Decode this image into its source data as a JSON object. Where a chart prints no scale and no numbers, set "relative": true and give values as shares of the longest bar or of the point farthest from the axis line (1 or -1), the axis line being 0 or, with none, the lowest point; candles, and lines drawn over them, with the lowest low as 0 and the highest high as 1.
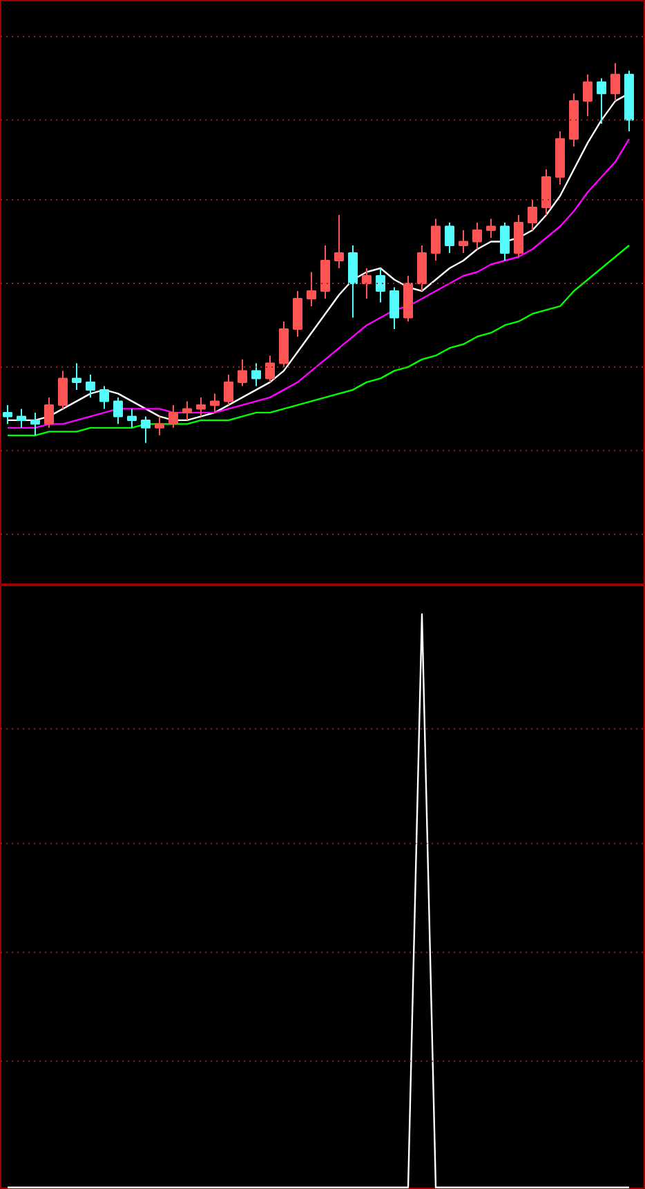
{
  "chart_data": [
    {
      "type": "candlestick",
      "relative": true,
      "ref_lines": [
        {
          "axis": "y",
          "value": 1.07,
          "color": "#a02020",
          "line_style": "dotted"
        },
        {
          "axis": "y",
          "value": 0.85,
          "color": "#a02020",
          "line_style": "dotted"
        },
        {
          "axis": "y",
          "value": 0.64,
          "color": "#a02020",
          "line_style": "dotted"
        },
        {
          "axis": "y",
          "value": 0.42,
          "color": "#a02020",
          "line_style": "dotted"
        },
        {
          "axis": "y",
          "value": 0.2,
          "color": "#a02020",
          "line_style": "dotted"
        },
        {
          "axis": "y",
          "value": -0.02,
          "color": "#a02020",
          "line_style": "dotted"
        },
        {
          "axis": "y",
          "value": -0.24,
          "color": "#a02020",
          "line_style": "dotted"
        }
      ],
      "categories": [
        null,
        null,
        null,
        null,
        null,
        null,
        null,
        null,
        null,
        null,
        null,
        null,
        null,
        null,
        null,
        null,
        null,
        null,
        null,
        null,
        null,
        null,
        null,
        null,
        null,
        null,
        null,
        null,
        null,
        null,
        null,
        null,
        null,
        null,
        null,
        null,
        null,
        null,
        null,
        null,
        null,
        null,
        null,
        null,
        null,
        null
      ],
      "ohlc": [
        [
          0.08,
          0.1,
          0.05,
          0.07
        ],
        [
          0.07,
          0.09,
          0.04,
          0.06
        ],
        [
          0.06,
          0.08,
          0.02,
          0.05
        ],
        [
          0.05,
          0.12,
          0.04,
          0.1
        ],
        [
          0.1,
          0.19,
          0.09,
          0.17
        ],
        [
          0.17,
          0.21,
          0.14,
          0.16
        ],
        [
          0.16,
          0.18,
          0.12,
          0.14
        ],
        [
          0.14,
          0.15,
          0.09,
          0.11
        ],
        [
          0.11,
          0.12,
          0.05,
          0.07
        ],
        [
          0.07,
          0.09,
          0.04,
          0.06
        ],
        [
          0.06,
          0.07,
          0.0,
          0.04
        ],
        [
          0.04,
          0.07,
          0.02,
          0.05
        ],
        [
          0.05,
          0.1,
          0.04,
          0.08
        ],
        [
          0.08,
          0.11,
          0.06,
          0.09
        ],
        [
          0.09,
          0.12,
          0.07,
          0.1
        ],
        [
          0.1,
          0.13,
          0.08,
          0.11
        ],
        [
          0.11,
          0.18,
          0.1,
          0.16
        ],
        [
          0.16,
          0.22,
          0.15,
          0.19
        ],
        [
          0.19,
          0.21,
          0.15,
          0.17
        ],
        [
          0.17,
          0.23,
          0.16,
          0.21
        ],
        [
          0.21,
          0.32,
          0.2,
          0.3
        ],
        [
          0.3,
          0.4,
          0.28,
          0.38
        ],
        [
          0.38,
          0.45,
          0.36,
          0.4
        ],
        [
          0.4,
          0.52,
          0.38,
          0.48
        ],
        [
          0.48,
          0.6,
          0.46,
          0.5
        ],
        [
          0.5,
          0.52,
          0.33,
          0.42
        ],
        [
          0.42,
          0.46,
          0.38,
          0.44
        ],
        [
          0.44,
          0.46,
          0.37,
          0.4
        ],
        [
          0.4,
          0.41,
          0.3,
          0.33
        ],
        [
          0.33,
          0.44,
          0.32,
          0.42
        ],
        [
          0.42,
          0.52,
          0.4,
          0.5
        ],
        [
          0.5,
          0.59,
          0.48,
          0.57
        ],
        [
          0.57,
          0.58,
          0.5,
          0.52
        ],
        [
          0.52,
          0.56,
          0.5,
          0.53
        ],
        [
          0.53,
          0.58,
          0.51,
          0.56
        ],
        [
          0.56,
          0.59,
          0.54,
          0.57
        ],
        [
          0.57,
          0.58,
          0.48,
          0.5
        ],
        [
          0.5,
          0.6,
          0.49,
          0.58
        ],
        [
          0.58,
          0.64,
          0.56,
          0.62
        ],
        [
          0.62,
          0.72,
          0.6,
          0.7
        ],
        [
          0.7,
          0.82,
          0.68,
          0.8
        ],
        [
          0.8,
          0.92,
          0.78,
          0.9
        ],
        [
          0.9,
          0.97,
          0.86,
          0.95
        ],
        [
          0.95,
          0.96,
          0.84,
          0.92
        ],
        [
          0.92,
          1.0,
          0.9,
          0.97
        ],
        [
          0.97,
          0.98,
          0.82,
          0.85
        ]
      ],
      "colors": [
        "#54fcfc",
        "#54fcfc",
        "#54fcfc",
        "#ff5454",
        "#ff5454",
        "#54fcfc",
        "#54fcfc",
        "#54fcfc",
        "#54fcfc",
        "#54fcfc",
        "#54fcfc",
        "#ff5454",
        "#ff5454",
        "#ff5454",
        "#ff5454",
        "#ff5454",
        "#ff5454",
        "#ff5454",
        "#54fcfc",
        "#ff5454",
        "#ff5454",
        "#ff5454",
        "#ff5454",
        "#ff5454",
        "#ff5454",
        "#54fcfc",
        "#ff5454",
        "#54fcfc",
        "#54fcfc",
        "#ff5454",
        "#ff5454",
        "#ff5454",
        "#54fcfc",
        "#ff5454",
        "#ff5454",
        "#ff5454",
        "#54fcfc",
        "#ff5454",
        "#ff5454",
        "#ff5454",
        "#ff5454",
        "#ff5454",
        "#ff5454",
        "#54fcfc",
        "#ff5454",
        "#54fcfc"
      ],
      "series": [
        {
          "type": "line",
          "color": "#ffffff",
          "values": [
            0.06,
            0.06,
            0.06,
            0.07,
            0.09,
            0.11,
            0.13,
            0.14,
            0.13,
            0.11,
            0.09,
            0.07,
            0.06,
            0.06,
            0.07,
            0.08,
            0.1,
            0.12,
            0.14,
            0.16,
            0.19,
            0.24,
            0.29,
            0.34,
            0.39,
            0.43,
            0.45,
            0.46,
            0.43,
            0.41,
            0.4,
            0.43,
            0.46,
            0.48,
            0.51,
            0.53,
            0.53,
            0.54,
            0.56,
            0.6,
            0.65,
            0.72,
            0.79,
            0.85,
            0.9,
            0.92
          ]
        },
        {
          "type": "line",
          "color": "#ff00ff",
          "values": [
            0.04,
            0.04,
            0.04,
            0.05,
            0.05,
            0.06,
            0.07,
            0.08,
            0.09,
            0.09,
            0.09,
            0.09,
            0.08,
            0.08,
            0.08,
            0.08,
            0.09,
            0.1,
            0.11,
            0.12,
            0.14,
            0.16,
            0.19,
            0.22,
            0.25,
            0.28,
            0.31,
            0.33,
            0.35,
            0.36,
            0.38,
            0.4,
            0.42,
            0.44,
            0.45,
            0.47,
            0.48,
            0.49,
            0.51,
            0.54,
            0.57,
            0.61,
            0.66,
            0.7,
            0.74,
            0.8
          ]
        },
        {
          "type": "line",
          "color": "#00ff00",
          "values": [
            0.02,
            0.02,
            0.02,
            0.03,
            0.03,
            0.03,
            0.04,
            0.04,
            0.04,
            0.04,
            0.05,
            0.05,
            0.05,
            0.05,
            0.06,
            0.06,
            0.06,
            0.07,
            0.08,
            0.08,
            0.09,
            0.1,
            0.11,
            0.12,
            0.13,
            0.14,
            0.16,
            0.17,
            0.19,
            0.2,
            0.22,
            0.23,
            0.25,
            0.26,
            0.28,
            0.29,
            0.31,
            0.32,
            0.34,
            0.35,
            0.36,
            0.4,
            0.43,
            0.46,
            0.49,
            0.52
          ]
        }
      ]
    },
    {
      "type": "line",
      "relative": true,
      "ref_lines": [
        {
          "axis": "y",
          "value": 0.8,
          "color": "#a02020",
          "line_style": "dotted"
        },
        {
          "axis": "y",
          "value": 0.6,
          "color": "#a02020",
          "line_style": "dotted"
        },
        {
          "axis": "y",
          "value": 0.41,
          "color": "#a02020",
          "line_style": "dotted"
        },
        {
          "axis": "y",
          "value": 0.22,
          "color": "#a02020",
          "line_style": "dotted"
        }
      ],
      "color": "#ffffff",
      "categories": [
        null,
        null,
        null,
        null,
        null,
        null,
        null,
        null,
        null,
        null,
        null,
        null,
        null,
        null,
        null,
        null,
        null,
        null,
        null,
        null,
        null,
        null,
        null,
        null,
        null,
        null,
        null,
        null,
        null,
        null,
        null,
        null,
        null,
        null,
        null,
        null,
        null,
        null,
        null,
        null,
        null,
        null,
        null,
        null,
        null,
        null
      ],
      "values": [
        0,
        0,
        0,
        0,
        0,
        0,
        0,
        0,
        0,
        0,
        0,
        0,
        0,
        0,
        0,
        0,
        0,
        0,
        0,
        0,
        0,
        0,
        0,
        0,
        0,
        0,
        0,
        0,
        0,
        0,
        1,
        0,
        0,
        0,
        0,
        0,
        0,
        0,
        0,
        0,
        0,
        0,
        0,
        0,
        0,
        0
      ]
    }
  ]
}
